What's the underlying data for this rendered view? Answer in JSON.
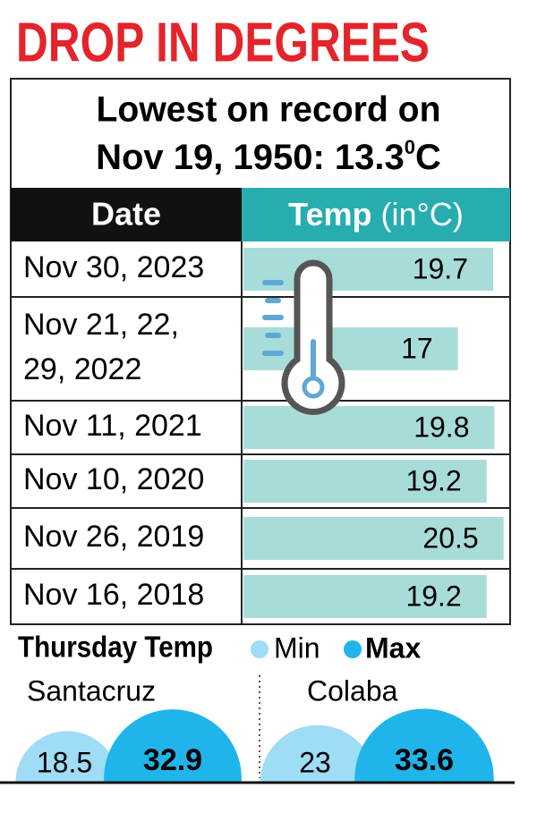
{
  "header": {
    "title": "DROP IN DEGREES",
    "subtitle_line1": "Lowest on record on",
    "subtitle_line2": "Nov 19, 1950: 13.3",
    "subtitle_sup": "0",
    "subtitle_unit": "C"
  },
  "table": {
    "columns": [
      "Date",
      "Temp",
      "(in°C)"
    ],
    "rows": [
      {
        "date": [
          "Nov 30, 2023"
        ],
        "temp": 19.7
      },
      {
        "date": [
          "Nov 21, 22,",
          "29, 2022"
        ],
        "temp": 17
      },
      {
        "date": [
          "Nov 11, 2021"
        ],
        "temp": 19.8
      },
      {
        "date": [
          "Nov 10, 2020"
        ],
        "temp": 19.2
      },
      {
        "date": [
          "Nov 26, 2019"
        ],
        "temp": 20.5
      },
      {
        "date": [
          "Nov 16, 2018"
        ],
        "temp": 19.2
      }
    ]
  },
  "thursday": {
    "title": "Thursday Temp",
    "legend": {
      "min": "Min",
      "max": "Max"
    },
    "stations": [
      {
        "name": "Santacruz",
        "min": 18.5,
        "max": 32.9
      },
      {
        "name": "Colaba",
        "min": 23,
        "max": 33.6
      }
    ]
  }
}
